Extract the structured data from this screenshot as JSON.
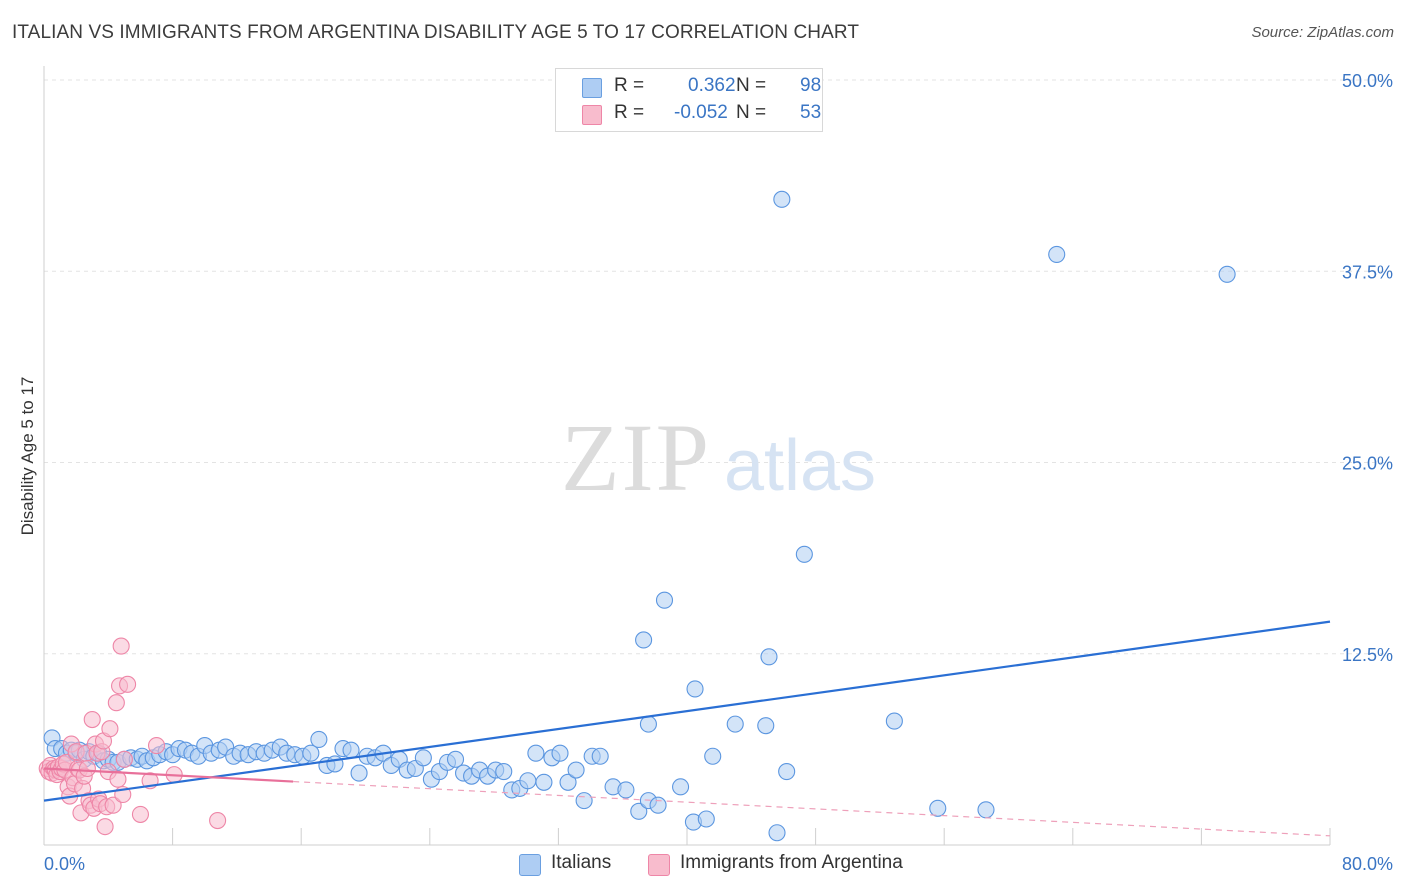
{
  "header": {
    "title": "ITALIAN VS IMMIGRANTS FROM ARGENTINA DISABILITY AGE 5 TO 17 CORRELATION CHART",
    "source": "Source: ZipAtlas.com"
  },
  "watermark": {
    "zip": "ZIP",
    "atlas": "atlas"
  },
  "legend_top": [
    {
      "r_label": "R =",
      "r_value": "0.362",
      "n_label": "N =",
      "n_value": "98",
      "color": "#aecdf3"
    },
    {
      "r_label": "R =",
      "r_value": "-0.052",
      "n_label": "N =",
      "n_value": "53",
      "color": "#f8bccd"
    }
  ],
  "legend_bottom": [
    {
      "label": "Italians",
      "color": "#aecdf3"
    },
    {
      "label": "Immigrants from Argentina",
      "color": "#f8bccd"
    }
  ],
  "chart_data": {
    "type": "scatter",
    "title": "ITALIAN VS IMMIGRANTS FROM ARGENTINA DISABILITY AGE 5 TO 17 CORRELATION CHART",
    "xlabel": "",
    "ylabel": "Disability Age 5 to 17",
    "xlim": [
      0,
      80
    ],
    "ylim": [
      0,
      50
    ],
    "x_tick_labels": [
      "0.0%",
      "80.0%"
    ],
    "y_tick_labels": [
      {
        "value": 12.5,
        "label": "12.5%"
      },
      {
        "value": 25,
        "label": "25.0%"
      },
      {
        "value": 37.5,
        "label": "37.5%"
      },
      {
        "value": 50,
        "label": "50.0%"
      }
    ],
    "grid": true,
    "legend_placement": "top-center",
    "series": [
      {
        "name": "Italians",
        "color": "#5b96e0",
        "fill": "#aecdf3",
        "trend": {
          "x": [
            0,
            80
          ],
          "y": [
            2.9,
            14.6
          ],
          "style": "solid"
        },
        "points": [
          [
            0.5,
            7.0
          ],
          [
            0.7,
            6.3
          ],
          [
            1.1,
            6.3
          ],
          [
            1.4,
            6.0
          ],
          [
            1.7,
            6.2
          ],
          [
            2.0,
            6.0
          ],
          [
            2.2,
            6.2
          ],
          [
            2.5,
            5.6
          ],
          [
            2.8,
            6.1
          ],
          [
            3.1,
            5.8
          ],
          [
            3.4,
            6.0
          ],
          [
            3.7,
            5.5
          ],
          [
            4.0,
            5.6
          ],
          [
            4.3,
            5.4
          ],
          [
            4.6,
            5.4
          ],
          [
            5.0,
            5.6
          ],
          [
            5.4,
            5.7
          ],
          [
            5.8,
            5.6
          ],
          [
            6.1,
            5.8
          ],
          [
            6.4,
            5.5
          ],
          [
            6.8,
            5.7
          ],
          [
            7.2,
            5.9
          ],
          [
            7.6,
            6.1
          ],
          [
            8.0,
            5.9
          ],
          [
            8.4,
            6.3
          ],
          [
            8.8,
            6.2
          ],
          [
            9.2,
            6.0
          ],
          [
            9.6,
            5.8
          ],
          [
            10.0,
            6.5
          ],
          [
            10.4,
            6.0
          ],
          [
            10.9,
            6.2
          ],
          [
            11.3,
            6.4
          ],
          [
            11.8,
            5.8
          ],
          [
            12.2,
            6.0
          ],
          [
            12.7,
            5.9
          ],
          [
            13.2,
            6.1
          ],
          [
            13.7,
            6.0
          ],
          [
            14.2,
            6.2
          ],
          [
            14.7,
            6.4
          ],
          [
            15.1,
            6.0
          ],
          [
            15.6,
            5.9
          ],
          [
            16.1,
            5.8
          ],
          [
            16.6,
            6.0
          ],
          [
            17.1,
            6.9
          ],
          [
            17.6,
            5.2
          ],
          [
            18.1,
            5.3
          ],
          [
            18.6,
            6.3
          ],
          [
            19.1,
            6.2
          ],
          [
            19.6,
            4.7
          ],
          [
            20.1,
            5.8
          ],
          [
            20.6,
            5.7
          ],
          [
            21.1,
            6.0
          ],
          [
            21.6,
            5.2
          ],
          [
            22.1,
            5.6
          ],
          [
            22.6,
            4.9
          ],
          [
            23.1,
            5.0
          ],
          [
            23.6,
            5.7
          ],
          [
            24.1,
            4.3
          ],
          [
            24.6,
            4.8
          ],
          [
            25.1,
            5.4
          ],
          [
            25.6,
            5.6
          ],
          [
            26.1,
            4.7
          ],
          [
            26.6,
            4.5
          ],
          [
            27.1,
            4.9
          ],
          [
            27.6,
            4.5
          ],
          [
            28.1,
            4.9
          ],
          [
            28.6,
            4.8
          ],
          [
            29.1,
            3.6
          ],
          [
            29.6,
            3.7
          ],
          [
            30.1,
            4.2
          ],
          [
            30.6,
            6.0
          ],
          [
            31.1,
            4.1
          ],
          [
            31.6,
            5.7
          ],
          [
            32.1,
            6.0
          ],
          [
            32.6,
            4.1
          ],
          [
            33.1,
            4.9
          ],
          [
            33.6,
            2.9
          ],
          [
            34.1,
            5.8
          ],
          [
            34.6,
            5.8
          ],
          [
            35.4,
            3.8
          ],
          [
            36.2,
            3.6
          ],
          [
            37.0,
            2.2
          ],
          [
            37.6,
            2.9
          ],
          [
            38.2,
            2.6
          ],
          [
            39.6,
            3.8
          ],
          [
            40.4,
            1.5
          ],
          [
            41.2,
            1.7
          ],
          [
            41.6,
            5.8
          ],
          [
            45.6,
            0.8
          ],
          [
            43.0,
            7.9
          ],
          [
            45.1,
            12.3
          ],
          [
            40.5,
            10.2
          ],
          [
            44.9,
            7.8
          ],
          [
            37.6,
            7.9
          ],
          [
            46.2,
            4.8
          ],
          [
            47.3,
            19.0
          ],
          [
            37.3,
            13.4
          ],
          [
            38.6,
            16.0
          ],
          [
            45.9,
            42.2
          ],
          [
            63.0,
            38.6
          ],
          [
            73.6,
            37.3
          ],
          [
            52.9,
            8.1
          ],
          [
            55.6,
            2.4
          ],
          [
            58.6,
            2.3
          ]
        ]
      },
      {
        "name": "Immigrants from Argentina",
        "color": "#ee86a7",
        "fill": "#f8bccd",
        "trend": {
          "x": [
            0,
            80
          ],
          "y": [
            5.0,
            0.6
          ],
          "solid_until": 15.5,
          "style": "solid-then-dashed"
        },
        "points": [
          [
            0.2,
            5.0
          ],
          [
            0.3,
            4.8
          ],
          [
            0.4,
            5.2
          ],
          [
            0.5,
            4.7
          ],
          [
            0.6,
            5.0
          ],
          [
            0.7,
            4.9
          ],
          [
            0.8,
            4.6
          ],
          [
            0.9,
            5.1
          ],
          [
            1.0,
            4.8
          ],
          [
            1.1,
            5.0
          ],
          [
            1.2,
            5.3
          ],
          [
            1.3,
            4.9
          ],
          [
            1.4,
            5.4
          ],
          [
            1.5,
            3.8
          ],
          [
            1.6,
            3.2
          ],
          [
            1.7,
            6.6
          ],
          [
            1.8,
            4.4
          ],
          [
            1.9,
            4.0
          ],
          [
            2.0,
            6.1
          ],
          [
            2.1,
            5.0
          ],
          [
            2.2,
            4.9
          ],
          [
            2.3,
            2.1
          ],
          [
            2.4,
            3.7
          ],
          [
            2.5,
            4.5
          ],
          [
            2.6,
            6.0
          ],
          [
            2.7,
            5.0
          ],
          [
            2.8,
            2.9
          ],
          [
            2.9,
            2.6
          ],
          [
            3.0,
            8.2
          ],
          [
            3.1,
            2.4
          ],
          [
            3.2,
            6.6
          ],
          [
            3.3,
            6.0
          ],
          [
            3.4,
            3.0
          ],
          [
            3.5,
            2.7
          ],
          [
            3.6,
            6.1
          ],
          [
            3.7,
            6.8
          ],
          [
            3.8,
            1.2
          ],
          [
            3.9,
            2.5
          ],
          [
            4.0,
            4.8
          ],
          [
            4.1,
            7.6
          ],
          [
            4.3,
            2.6
          ],
          [
            4.5,
            9.3
          ],
          [
            4.6,
            4.3
          ],
          [
            4.7,
            10.4
          ],
          [
            4.8,
            13.0
          ],
          [
            4.9,
            3.3
          ],
          [
            5.0,
            5.6
          ],
          [
            5.2,
            10.5
          ],
          [
            6.0,
            2.0
          ],
          [
            6.6,
            4.2
          ],
          [
            7.0,
            6.5
          ],
          [
            8.1,
            4.6
          ],
          [
            10.8,
            1.6
          ]
        ]
      }
    ]
  }
}
